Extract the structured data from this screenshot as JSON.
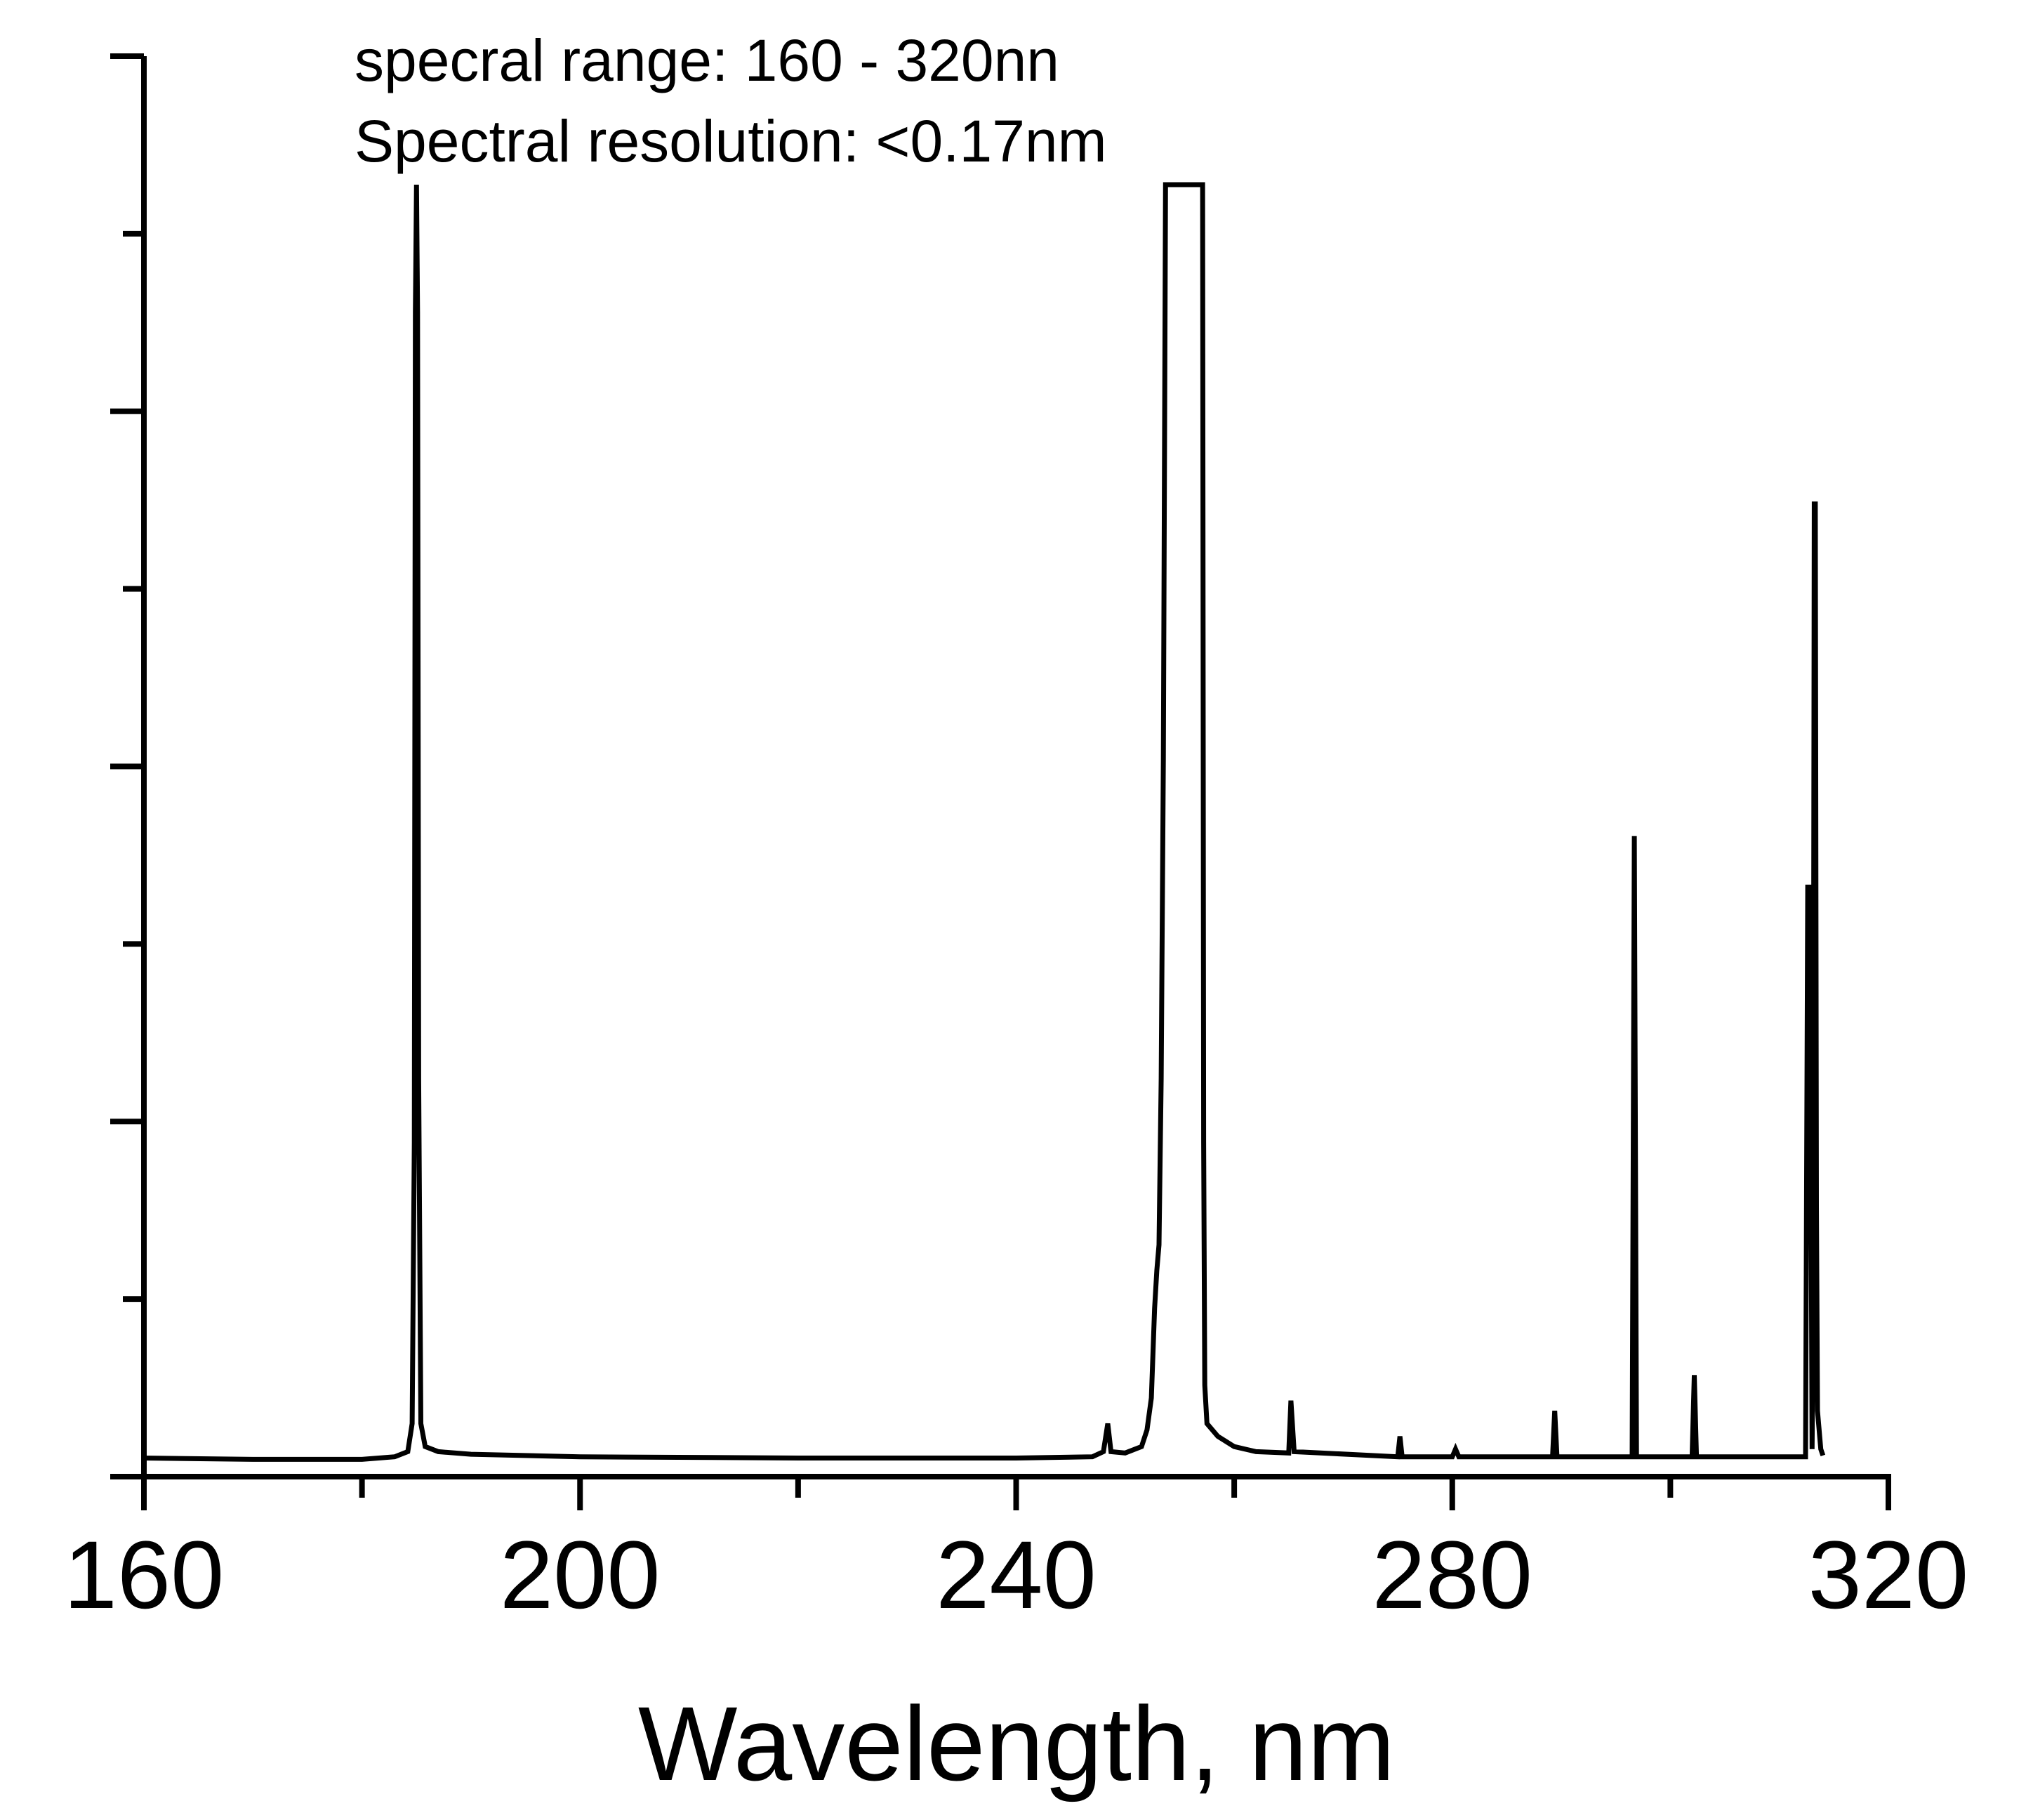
{
  "chart_data": {
    "type": "line",
    "title": "",
    "xlabel": "Wavelength, nm",
    "ylabel": "",
    "xlim": [
      160,
      320
    ],
    "ylim": [
      0,
      1.0
    ],
    "x_ticks": [
      160,
      200,
      240,
      280,
      320
    ],
    "x_minor_ticks": [
      180,
      220,
      260,
      300
    ],
    "y_tick_count": 9,
    "y_tick_labels_shown": false,
    "grid": false,
    "legend": "none",
    "line_color": "#000000",
    "annotations": [
      "specral range: 160 - 320nn",
      "Spectral resolution: <0.17nm"
    ],
    "series": [
      {
        "values": [
          [
            160.0,
            0.003
          ],
          [
            170.0,
            0.002
          ],
          [
            180.0,
            0.002
          ],
          [
            183.0,
            0.004
          ],
          [
            184.2,
            0.008
          ],
          [
            184.6,
            0.03
          ],
          [
            184.8,
            0.25
          ],
          [
            184.9,
            0.9
          ],
          [
            185.0,
            1.0
          ],
          [
            185.1,
            0.9
          ],
          [
            185.2,
            0.3
          ],
          [
            185.4,
            0.03
          ],
          [
            185.8,
            0.012
          ],
          [
            187.0,
            0.008
          ],
          [
            190.0,
            0.006
          ],
          [
            200.0,
            0.004
          ],
          [
            220.0,
            0.003
          ],
          [
            240.0,
            0.003
          ],
          [
            247.0,
            0.004
          ],
          [
            248.0,
            0.008
          ],
          [
            248.4,
            0.03
          ],
          [
            248.7,
            0.008
          ],
          [
            250.0,
            0.007
          ],
          [
            251.5,
            0.012
          ],
          [
            252.0,
            0.025
          ],
          [
            252.4,
            0.05
          ],
          [
            252.7,
            0.12
          ],
          [
            252.9,
            0.15
          ],
          [
            253.1,
            0.17
          ],
          [
            253.3,
            0.3
          ],
          [
            253.5,
            0.55
          ],
          [
            253.7,
            1.0
          ],
          [
            257.1,
            1.0
          ],
          [
            257.2,
            0.25
          ],
          [
            257.3,
            0.06
          ],
          [
            257.5,
            0.03
          ],
          [
            258.5,
            0.02
          ],
          [
            260.0,
            0.012
          ],
          [
            262.0,
            0.008
          ],
          [
            265.0,
            0.007
          ],
          [
            265.2,
            0.048
          ],
          [
            265.5,
            0.008
          ],
          [
            275.0,
            0.004
          ],
          [
            275.2,
            0.02
          ],
          [
            275.4,
            0.004
          ],
          [
            280.0,
            0.004
          ],
          [
            280.3,
            0.01
          ],
          [
            280.6,
            0.004
          ],
          [
            289.2,
            0.004
          ],
          [
            289.4,
            0.04
          ],
          [
            289.6,
            0.004
          ],
          [
            296.5,
            0.004
          ],
          [
            296.7,
            0.49
          ],
          [
            296.9,
            0.004
          ],
          [
            302.0,
            0.004
          ],
          [
            302.2,
            0.068
          ],
          [
            302.4,
            0.004
          ],
          [
            312.4,
            0.004
          ],
          [
            312.6,
            0.45
          ],
          [
            312.8,
            0.45
          ],
          [
            313.0,
            0.01
          ],
          [
            313.1,
            0.1
          ],
          [
            313.2,
            0.75
          ],
          [
            313.3,
            0.75
          ],
          [
            313.4,
            0.2
          ],
          [
            313.5,
            0.04
          ],
          [
            313.8,
            0.01
          ],
          [
            314.0,
            0.005
          ]
        ]
      }
    ]
  }
}
